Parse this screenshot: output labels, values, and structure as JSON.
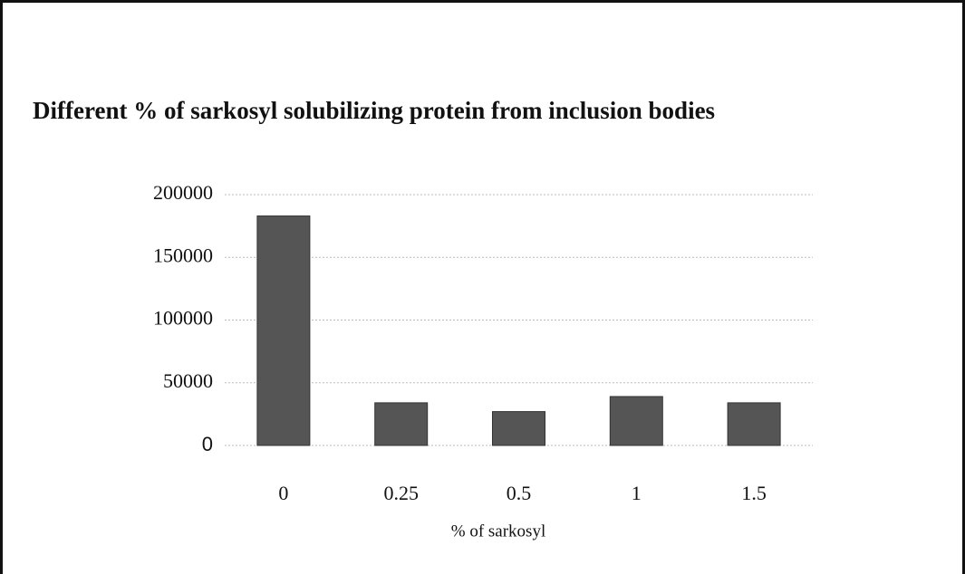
{
  "chart_data": {
    "type": "bar",
    "title": "Different % of sarkosyl solubilizing protein from inclusion bodies",
    "x_label": "% of sarkosyl",
    "categories": [
      "0",
      "0.25",
      "0.5",
      "1",
      "1.5"
    ],
    "values": [
      183000,
      34000,
      27000,
      39000,
      34000
    ],
    "color": "#555555",
    "ylim": [
      0,
      200000
    ],
    "yticks": [
      0,
      50000,
      100000,
      150000,
      200000
    ],
    "grid": true
  }
}
